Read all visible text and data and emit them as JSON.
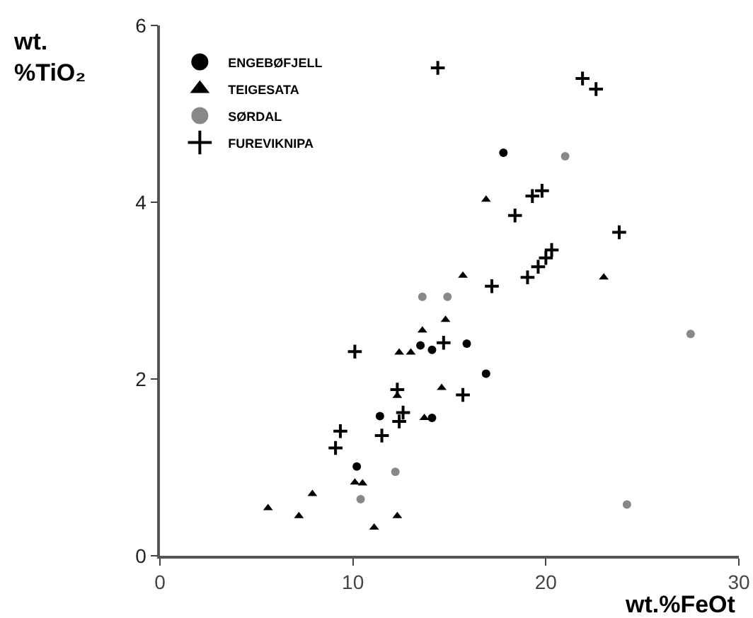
{
  "chart_data": {
    "type": "scatter",
    "xlabel": "wt.%FeOt",
    "ylabel": "wt.\n%TiO₂",
    "xlim": [
      0,
      30
    ],
    "xticks": [
      0,
      10,
      20,
      30
    ],
    "ylim": [
      0,
      6
    ],
    "yticks": [
      0,
      2,
      4,
      6
    ],
    "grid": false,
    "legend": "top left",
    "series": [
      {
        "name": "ENGEBØFJELL",
        "color": "#000000",
        "marker": "circle",
        "x": [
          17.8,
          15.9,
          16.9,
          13.5,
          14.1,
          11.4,
          10.2,
          14.1
        ],
        "values": [
          4.56,
          2.4,
          2.06,
          2.38,
          2.33,
          1.58,
          1.01,
          1.56
        ]
      },
      {
        "name": "TEIGESATA",
        "color": "#000000",
        "marker": "triangle",
        "x": [
          16.9,
          15.7,
          23,
          14.8,
          13.6,
          12.4,
          13,
          14.6,
          12.3,
          13.7,
          10.1,
          10.5,
          7.9,
          5.6,
          7.2,
          11.1,
          12.3
        ],
        "values": [
          4.03,
          3.17,
          3.15,
          2.67,
          2.55,
          2.3,
          2.3,
          1.9,
          1.81,
          1.56,
          0.83,
          0.82,
          0.7,
          0.54,
          0.45,
          0.32,
          0.45
        ]
      },
      {
        "name": "SØRDAL",
        "color": "#888888",
        "marker": "circle",
        "x": [
          21,
          13.6,
          14.9,
          27.5,
          12.2,
          10.4,
          24.2
        ],
        "values": [
          4.52,
          2.93,
          2.93,
          2.51,
          0.95,
          0.64,
          0.58
        ]
      },
      {
        "name": "FUREVIKNIPA",
        "color": "#000000",
        "marker": "cross",
        "x": [
          14.4,
          21.9,
          22.6,
          19.3,
          19.8,
          18.4,
          23.8,
          20.3,
          20,
          19.6,
          19.05,
          17.2,
          14.7,
          10.1,
          15.7,
          12.3,
          12.6,
          12.4,
          11.5,
          9.35,
          9.1
        ],
        "values": [
          5.52,
          5.4,
          5.28,
          4.07,
          4.13,
          3.85,
          3.66,
          3.46,
          3.37,
          3.27,
          3.15,
          3.05,
          2.41,
          2.31,
          1.82,
          1.88,
          1.62,
          1.52,
          1.36,
          1.41,
          1.22
        ]
      }
    ]
  }
}
